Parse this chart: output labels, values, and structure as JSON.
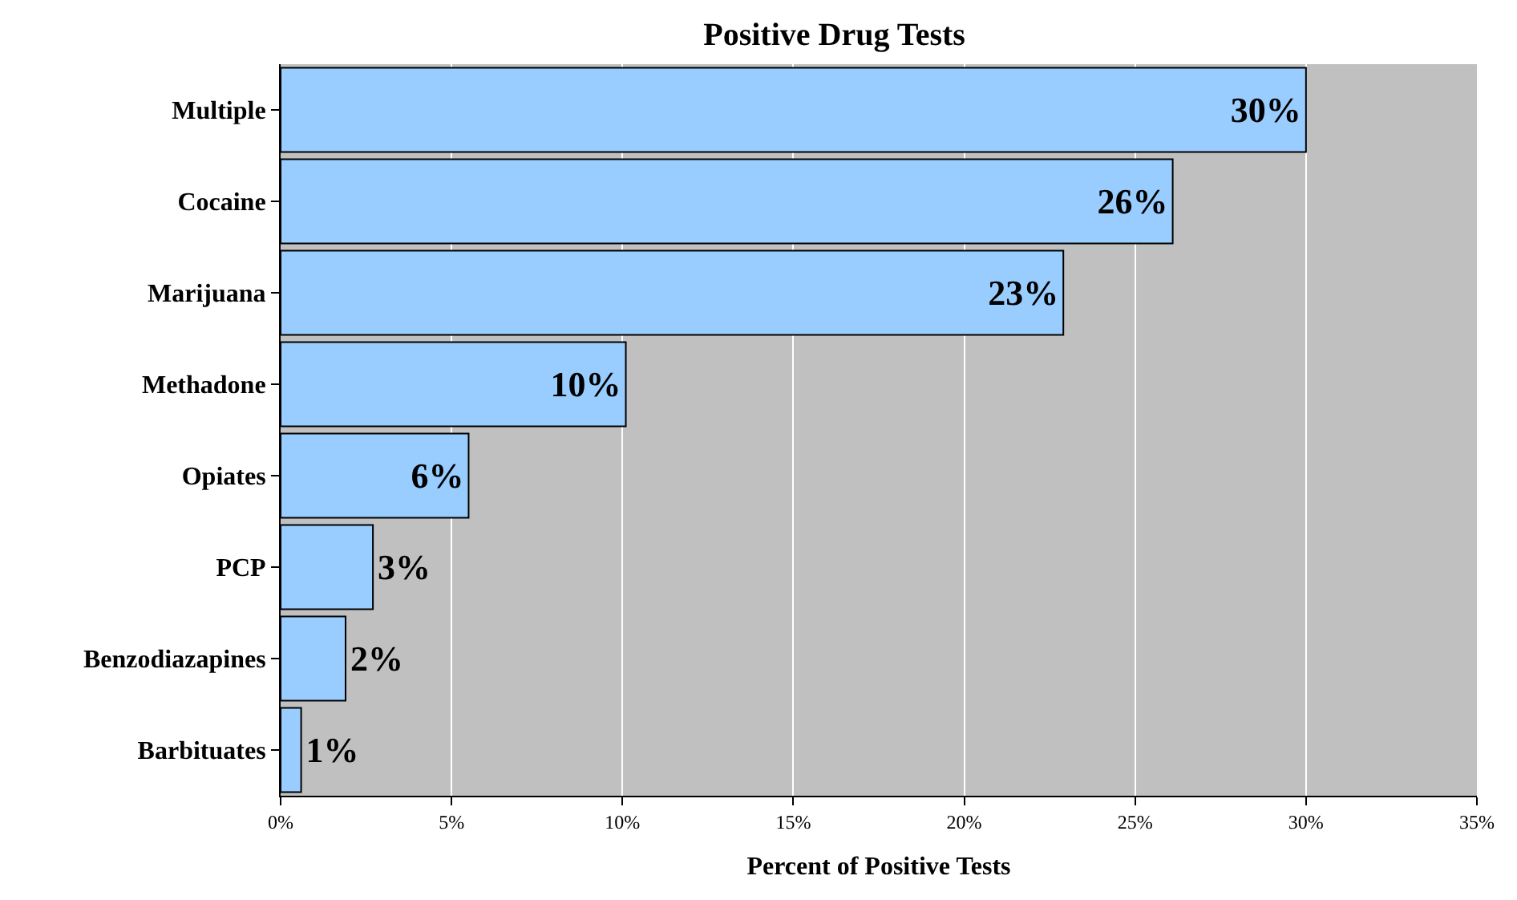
{
  "chart_data": {
    "type": "bar",
    "orientation": "horizontal",
    "title": "Positive Drug Tests",
    "xlabel": "Percent of Positive Tests",
    "categories": [
      "Multiple",
      "Cocaine",
      "Marijuana",
      "Methadone",
      "Opiates",
      "PCP",
      "Benzodiazapines",
      "Barbituates"
    ],
    "values": [
      30,
      26.1,
      22.9,
      10.1,
      5.5,
      2.7,
      1.9,
      0.6
    ],
    "value_labels": [
      "30%",
      "26%",
      "23%",
      "10%",
      "6%",
      "3%",
      "2%",
      "1%"
    ],
    "color": "#99ccff",
    "xlim": [
      0,
      35
    ],
    "xticks": [
      {
        "value": 0,
        "label": "0%"
      },
      {
        "value": 5,
        "label": "5%"
      },
      {
        "value": 10,
        "label": "10%"
      },
      {
        "value": 15,
        "label": "15%"
      },
      {
        "value": 20,
        "label": "20%"
      },
      {
        "value": 25,
        "label": "25%"
      },
      {
        "value": 30,
        "label": "30%"
      },
      {
        "value": 35,
        "label": "35%"
      }
    ],
    "grid": "x",
    "legend": false
  }
}
